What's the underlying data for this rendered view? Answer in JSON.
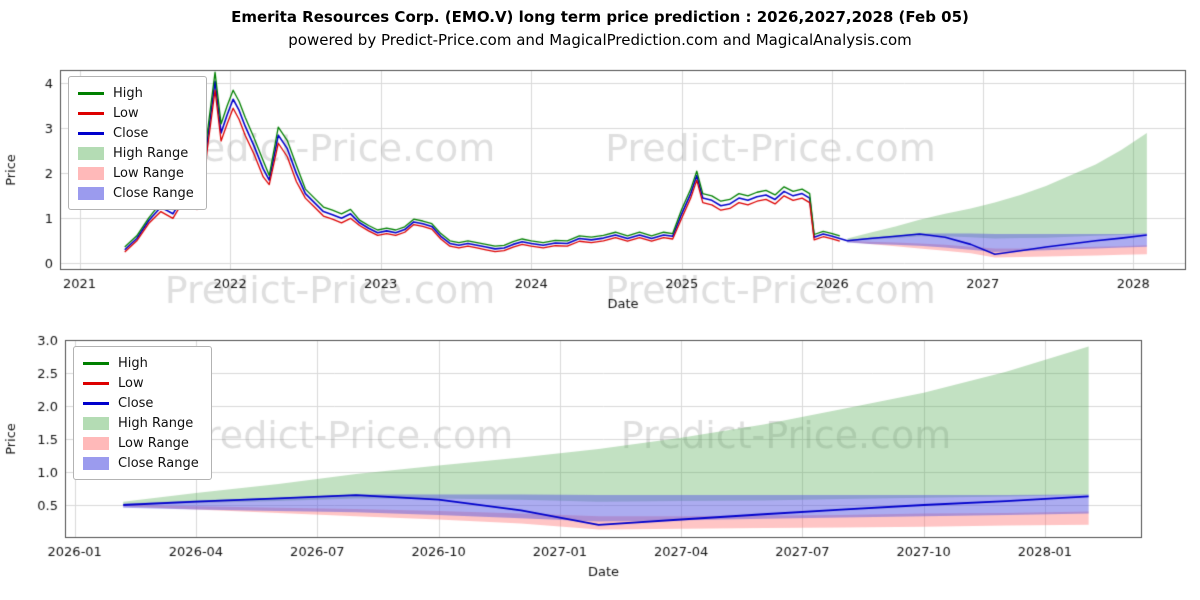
{
  "page": {
    "title": "Emerita Resources Corp. (EMO.V) long term price prediction : 2026,2027,2028 (Feb 05)",
    "subtitle": "powered by Predict-Price.com and MagicalPrediction.com and MagicalAnalysis.com"
  },
  "chart_data": {
    "type": "line",
    "watermark": "Predict-Price.com",
    "colors": {
      "high": "#008000",
      "low": "#dd0000",
      "close": "#0000cc",
      "high_range_fill": "rgba(80,170,80,0.35)",
      "low_range_fill": "rgba(255,110,110,0.40)",
      "close_range_fill": "rgba(90,90,225,0.50)",
      "grid": "#d9d9d9",
      "watermark_color": "rgba(140,140,140,0.28)"
    },
    "legend": [
      {
        "label": "High",
        "type": "line",
        "color": "#008000"
      },
      {
        "label": "Low",
        "type": "line",
        "color": "#dd0000"
      },
      {
        "label": "Close",
        "type": "line",
        "color": "#0000cc"
      },
      {
        "label": "High Range",
        "type": "patch",
        "color": "#b4dcb4"
      },
      {
        "label": "Low Range",
        "type": "patch",
        "color": "#ffb9b9"
      },
      {
        "label": "Close Range",
        "type": "patch",
        "color": "#9b9bee"
      }
    ],
    "top_chart": {
      "xlabel": "Date",
      "ylabel": "Price",
      "xlim": [
        2020.87,
        2028.35
      ],
      "ylim": [
        -0.15,
        4.3
      ],
      "xticks": [
        2021,
        2022,
        2023,
        2024,
        2025,
        2026,
        2027,
        2028
      ],
      "xtick_labels": [
        "2021",
        "2022",
        "2023",
        "2024",
        "2025",
        "2026",
        "2027",
        "2028"
      ],
      "yticks": [
        0,
        1,
        2,
        3,
        4
      ],
      "ytick_labels": [
        "0",
        "1",
        "2",
        "3",
        "4"
      ],
      "watermarks": [
        [
          0.275,
          0.36
        ],
        [
          0.642,
          0.36
        ],
        [
          0.275,
          0.91
        ],
        [
          0.642,
          0.91
        ]
      ]
    },
    "bottom_chart": {
      "xlabel": "Date",
      "ylabel": "Price",
      "xlim": [
        2025.98,
        2028.2
      ],
      "ylim": [
        0,
        3.0
      ],
      "xticks": [
        2026.0,
        2026.25,
        2026.5,
        2026.75,
        2027.0,
        2027.25,
        2027.5,
        2027.75,
        2028.0
      ],
      "xtick_labels": [
        "2026-01",
        "2026-04",
        "2026-07",
        "2026-10",
        "2027-01",
        "2027-04",
        "2027-07",
        "2027-10",
        "2028-01"
      ],
      "yticks": [
        0.5,
        1.0,
        1.5,
        2.0,
        2.5,
        3.0
      ],
      "ytick_labels": [
        "0.5",
        "1.0",
        "1.5",
        "2.0",
        "2.5",
        "3.0"
      ],
      "watermarks": [
        [
          0.29,
          0.42
        ],
        [
          0.655,
          0.42
        ]
      ]
    },
    "history": {
      "x": [
        2021.3,
        2021.38,
        2021.46,
        2021.54,
        2021.62,
        2021.7,
        2021.78,
        2021.84,
        2021.9,
        2021.94,
        2021.98,
        2022.02,
        2022.06,
        2022.1,
        2022.16,
        2022.22,
        2022.26,
        2022.32,
        2022.38,
        2022.44,
        2022.5,
        2022.56,
        2022.62,
        2022.68,
        2022.74,
        2022.8,
        2022.86,
        2022.92,
        2022.98,
        2023.04,
        2023.1,
        2023.16,
        2023.22,
        2023.28,
        2023.34,
        2023.4,
        2023.46,
        2023.52,
        2023.58,
        2023.64,
        2023.7,
        2023.76,
        2023.82,
        2023.88,
        2023.94,
        2024.0,
        2024.08,
        2024.16,
        2024.24,
        2024.32,
        2024.4,
        2024.48,
        2024.56,
        2024.64,
        2024.72,
        2024.8,
        2024.88,
        2024.94,
        2025.0,
        2025.06,
        2025.1,
        2025.14,
        2025.2,
        2025.26,
        2025.32,
        2025.38,
        2025.44,
        2025.5,
        2025.56,
        2025.62,
        2025.68,
        2025.74,
        2025.8,
        2025.85,
        2025.88,
        2025.94,
        2026.0,
        2026.05
      ],
      "high": [
        0.36,
        0.61,
        1.01,
        1.35,
        1.2,
        1.65,
        1.4,
        2.68,
        4.25,
        3.1,
        3.5,
        3.85,
        3.6,
        3.25,
        2.78,
        2.28,
        1.95,
        3.03,
        2.73,
        2.18,
        1.65,
        1.45,
        1.25,
        1.18,
        1.1,
        1.2,
        0.96,
        0.84,
        0.74,
        0.78,
        0.74,
        0.81,
        0.98,
        0.94,
        0.88,
        0.66,
        0.5,
        0.46,
        0.5,
        0.46,
        0.42,
        0.38,
        0.4,
        0.48,
        0.54,
        0.5,
        0.46,
        0.51,
        0.5,
        0.61,
        0.58,
        0.62,
        0.69,
        0.61,
        0.69,
        0.61,
        0.69,
        0.66,
        1.2,
        1.65,
        2.05,
        1.55,
        1.5,
        1.38,
        1.42,
        1.55,
        1.5,
        1.58,
        1.62,
        1.52,
        1.7,
        1.6,
        1.65,
        1.55,
        0.64,
        0.71,
        0.66,
        0.61
      ],
      "low": [
        0.25,
        0.5,
        0.89,
        1.15,
        1.0,
        1.45,
        1.2,
        2.32,
        3.85,
        2.72,
        3.1,
        3.45,
        3.2,
        2.85,
        2.42,
        1.92,
        1.75,
        2.67,
        2.37,
        1.82,
        1.45,
        1.25,
        1.05,
        0.98,
        0.9,
        1.0,
        0.84,
        0.72,
        0.62,
        0.66,
        0.62,
        0.69,
        0.86,
        0.82,
        0.76,
        0.54,
        0.38,
        0.34,
        0.38,
        0.34,
        0.3,
        0.26,
        0.28,
        0.36,
        0.42,
        0.38,
        0.34,
        0.39,
        0.38,
        0.49,
        0.46,
        0.5,
        0.57,
        0.49,
        0.57,
        0.49,
        0.57,
        0.54,
        1.0,
        1.45,
        1.85,
        1.35,
        1.3,
        1.18,
        1.22,
        1.35,
        1.3,
        1.38,
        1.42,
        1.32,
        1.5,
        1.4,
        1.45,
        1.35,
        0.52,
        0.59,
        0.54,
        0.49
      ],
      "close": [
        0.3,
        0.55,
        0.95,
        1.25,
        1.1,
        1.55,
        1.3,
        2.5,
        4.05,
        2.9,
        3.3,
        3.65,
        3.4,
        3.05,
        2.6,
        2.1,
        1.85,
        2.85,
        2.55,
        2.0,
        1.55,
        1.35,
        1.15,
        1.08,
        1.0,
        1.1,
        0.9,
        0.78,
        0.68,
        0.72,
        0.68,
        0.75,
        0.92,
        0.88,
        0.82,
        0.6,
        0.44,
        0.4,
        0.44,
        0.4,
        0.36,
        0.32,
        0.34,
        0.42,
        0.48,
        0.44,
        0.4,
        0.45,
        0.44,
        0.55,
        0.52,
        0.56,
        0.63,
        0.55,
        0.63,
        0.55,
        0.63,
        0.6,
        1.1,
        1.55,
        1.95,
        1.45,
        1.4,
        1.28,
        1.32,
        1.45,
        1.4,
        1.48,
        1.52,
        1.42,
        1.6,
        1.5,
        1.55,
        1.45,
        0.58,
        0.65,
        0.6,
        0.55
      ]
    },
    "forecast": {
      "x": [
        2026.1,
        2026.25,
        2026.42,
        2026.58,
        2026.75,
        2026.92,
        2027.08,
        2027.25,
        2027.42,
        2027.58,
        2027.75,
        2027.92,
        2028.09
      ],
      "close": [
        0.5,
        0.55,
        0.6,
        0.65,
        0.58,
        0.42,
        0.2,
        0.28,
        0.36,
        0.43,
        0.5,
        0.56,
        0.63
      ],
      "high_upper": [
        0.55,
        0.68,
        0.82,
        0.97,
        1.1,
        1.22,
        1.35,
        1.52,
        1.72,
        1.95,
        2.2,
        2.52,
        2.9
      ],
      "high_lower": [
        0.5,
        0.53,
        0.56,
        0.6,
        0.6,
        0.58,
        0.55,
        0.56,
        0.57,
        0.59,
        0.61,
        0.63,
        0.65
      ],
      "low_upper": [
        0.5,
        0.48,
        0.46,
        0.44,
        0.41,
        0.37,
        0.33,
        0.33,
        0.34,
        0.35,
        0.37,
        0.38,
        0.4
      ],
      "low_lower": [
        0.48,
        0.43,
        0.38,
        0.33,
        0.28,
        0.22,
        0.13,
        0.14,
        0.15,
        0.16,
        0.17,
        0.19,
        0.2
      ],
      "close_upper": [
        0.52,
        0.57,
        0.61,
        0.66,
        0.66,
        0.66,
        0.65,
        0.65,
        0.65,
        0.65,
        0.65,
        0.65,
        0.66
      ],
      "close_lower": [
        0.46,
        0.43,
        0.41,
        0.39,
        0.35,
        0.3,
        0.25,
        0.27,
        0.29,
        0.31,
        0.33,
        0.35,
        0.37
      ]
    }
  }
}
